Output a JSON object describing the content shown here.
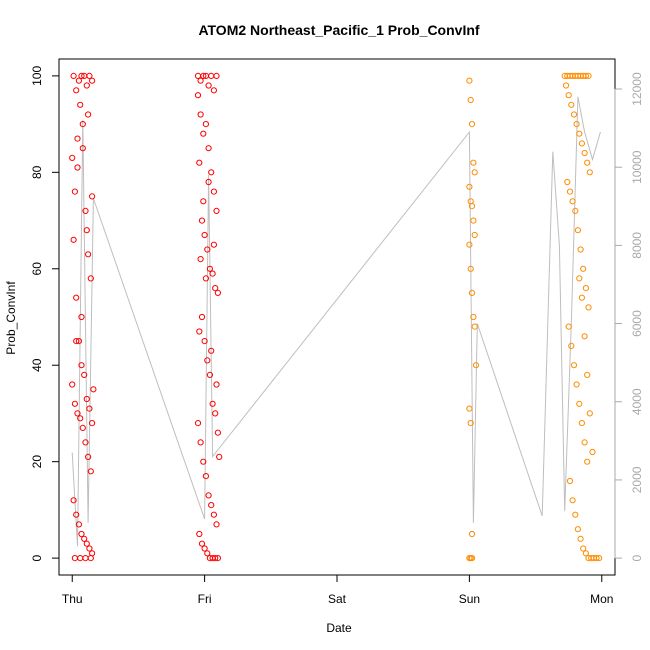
{
  "chart_data": {
    "type": "scatter",
    "title": "ATOM2 Northeast_Pacific_1 Prob_ConvInf",
    "xlabel": "Date",
    "ylabel": "Prob_ConvInf",
    "x_ticks": [
      "Thu",
      "Fri",
      "Sat",
      "Sun",
      "Mon"
    ],
    "x_range_days": [
      -0.1,
      4.1
    ],
    "ylim": [
      -3.5,
      103.5
    ],
    "y_ticks": [
      0,
      20,
      40,
      60,
      80,
      100
    ],
    "y2lim": [
      -432,
      12768
    ],
    "y2_ticks": [
      0,
      2000,
      4000,
      6000,
      8000,
      10000,
      12000
    ],
    "colors": {
      "series_a": "#ff0000",
      "series_b": "#ff8c00",
      "line": "#bebebe",
      "right_axis": "#a9a9a9"
    },
    "grey_line": {
      "x": [
        0.0,
        0.04,
        0.08,
        0.12,
        0.16,
        1.0,
        1.03,
        1.06,
        3.0,
        3.03,
        3.06,
        3.55,
        3.63,
        3.68,
        3.72,
        3.77,
        3.82,
        3.87,
        3.93,
        3.99
      ],
      "y": [
        2700,
        300,
        11200,
        900,
        9200,
        1000,
        9800,
        2600,
        10900,
        900,
        6000,
        1080,
        10400,
        8000,
        1200,
        6000,
        11800,
        10900,
        10200,
        10900
      ]
    },
    "series": [
      {
        "name": "red",
        "color": "#ff0000",
        "points": [
          [
            0.01,
            100
          ],
          [
            0.03,
            97
          ],
          [
            0.05,
            99
          ],
          [
            0.07,
            100
          ],
          [
            0.09,
            100
          ],
          [
            0.11,
            98
          ],
          [
            0.13,
            100
          ],
          [
            0.15,
            99
          ],
          [
            0.0,
            83
          ],
          [
            0.02,
            76
          ],
          [
            0.04,
            87
          ],
          [
            0.06,
            94
          ],
          [
            0.08,
            85
          ],
          [
            0.1,
            72
          ],
          [
            0.12,
            63
          ],
          [
            0.14,
            58
          ],
          [
            0.01,
            66
          ],
          [
            0.03,
            54
          ],
          [
            0.05,
            45
          ],
          [
            0.07,
            40
          ],
          [
            0.09,
            38
          ],
          [
            0.11,
            33
          ],
          [
            0.13,
            31
          ],
          [
            0.15,
            28
          ],
          [
            0.0,
            36
          ],
          [
            0.02,
            32
          ],
          [
            0.04,
            30
          ],
          [
            0.06,
            29
          ],
          [
            0.08,
            27
          ],
          [
            0.1,
            24
          ],
          [
            0.12,
            21
          ],
          [
            0.14,
            18
          ],
          [
            0.01,
            12
          ],
          [
            0.03,
            9
          ],
          [
            0.05,
            7
          ],
          [
            0.07,
            5
          ],
          [
            0.09,
            4
          ],
          [
            0.11,
            3
          ],
          [
            0.13,
            2
          ],
          [
            0.15,
            1
          ],
          [
            0.02,
            0
          ],
          [
            0.06,
            0
          ],
          [
            0.1,
            0
          ],
          [
            0.14,
            0
          ],
          [
            0.03,
            45
          ],
          [
            0.07,
            50
          ],
          [
            0.11,
            68
          ],
          [
            0.15,
            75
          ],
          [
            0.04,
            81
          ],
          [
            0.08,
            90
          ],
          [
            0.12,
            92
          ],
          [
            0.16,
            35
          ],
          [
            0.95,
            100
          ],
          [
            0.97,
            99
          ],
          [
            0.99,
            100
          ],
          [
            1.01,
            100
          ],
          [
            1.03,
            98
          ],
          [
            1.05,
            100
          ],
          [
            1.07,
            97
          ],
          [
            1.09,
            100
          ],
          [
            0.95,
            96
          ],
          [
            0.97,
            92
          ],
          [
            0.99,
            88
          ],
          [
            1.01,
            90
          ],
          [
            1.03,
            85
          ],
          [
            1.05,
            80
          ],
          [
            1.07,
            76
          ],
          [
            1.09,
            72
          ],
          [
            0.96,
            82
          ],
          [
            0.98,
            70
          ],
          [
            1.0,
            67
          ],
          [
            1.02,
            64
          ],
          [
            1.04,
            60
          ],
          [
            1.06,
            59
          ],
          [
            1.08,
            56
          ],
          [
            1.1,
            55
          ],
          [
            0.96,
            47
          ],
          [
            0.98,
            50
          ],
          [
            1.0,
            45
          ],
          [
            1.02,
            41
          ],
          [
            1.04,
            38
          ],
          [
            1.06,
            32
          ],
          [
            1.08,
            30
          ],
          [
            1.1,
            26
          ],
          [
            0.95,
            28
          ],
          [
            0.97,
            24
          ],
          [
            0.99,
            20
          ],
          [
            1.01,
            17
          ],
          [
            1.03,
            13
          ],
          [
            1.05,
            11
          ],
          [
            1.07,
            9
          ],
          [
            1.09,
            7
          ],
          [
            0.96,
            5
          ],
          [
            0.98,
            3
          ],
          [
            1.0,
            2
          ],
          [
            1.02,
            1
          ],
          [
            1.04,
            0
          ],
          [
            1.06,
            0
          ],
          [
            1.08,
            0
          ],
          [
            1.1,
            0
          ],
          [
            0.97,
            62
          ],
          [
            1.01,
            58
          ],
          [
            1.05,
            43
          ],
          [
            1.09,
            36
          ],
          [
            0.99,
            74
          ],
          [
            1.03,
            78
          ],
          [
            1.07,
            65
          ],
          [
            1.11,
            21
          ]
        ]
      },
      {
        "name": "orange",
        "color": "#ff8c00",
        "points": [
          [
            3.0,
            99
          ],
          [
            3.01,
            95
          ],
          [
            3.02,
            90
          ],
          [
            3.03,
            82
          ],
          [
            3.04,
            80
          ],
          [
            3.0,
            77
          ],
          [
            3.01,
            74
          ],
          [
            3.02,
            73
          ],
          [
            3.03,
            70
          ],
          [
            3.04,
            67
          ],
          [
            3.0,
            65
          ],
          [
            3.01,
            60
          ],
          [
            3.02,
            55
          ],
          [
            3.03,
            50
          ],
          [
            3.04,
            48
          ],
          [
            3.05,
            40
          ],
          [
            3.0,
            31
          ],
          [
            3.01,
            28
          ],
          [
            3.02,
            5
          ],
          [
            3.0,
            0
          ],
          [
            3.01,
            0
          ],
          [
            3.02,
            0
          ],
          [
            3.72,
            100
          ],
          [
            3.74,
            100
          ],
          [
            3.76,
            100
          ],
          [
            3.78,
            100
          ],
          [
            3.8,
            100
          ],
          [
            3.82,
            100
          ],
          [
            3.84,
            100
          ],
          [
            3.86,
            100
          ],
          [
            3.88,
            100
          ],
          [
            3.9,
            100
          ],
          [
            3.73,
            98
          ],
          [
            3.75,
            96
          ],
          [
            3.77,
            94
          ],
          [
            3.79,
            92
          ],
          [
            3.81,
            90
          ],
          [
            3.83,
            88
          ],
          [
            3.85,
            86
          ],
          [
            3.87,
            84
          ],
          [
            3.89,
            82
          ],
          [
            3.91,
            80
          ],
          [
            3.74,
            78
          ],
          [
            3.76,
            76
          ],
          [
            3.78,
            74
          ],
          [
            3.8,
            72
          ],
          [
            3.82,
            68
          ],
          [
            3.84,
            64
          ],
          [
            3.86,
            60
          ],
          [
            3.88,
            56
          ],
          [
            3.9,
            52
          ],
          [
            3.75,
            48
          ],
          [
            3.77,
            44
          ],
          [
            3.79,
            40
          ],
          [
            3.81,
            36
          ],
          [
            3.83,
            32
          ],
          [
            3.85,
            28
          ],
          [
            3.87,
            24
          ],
          [
            3.89,
            20
          ],
          [
            3.76,
            16
          ],
          [
            3.78,
            12
          ],
          [
            3.8,
            9
          ],
          [
            3.82,
            6
          ],
          [
            3.84,
            4
          ],
          [
            3.86,
            2
          ],
          [
            3.88,
            1
          ],
          [
            3.9,
            0
          ],
          [
            3.92,
            0
          ],
          [
            3.94,
            0
          ],
          [
            3.96,
            0
          ],
          [
            3.98,
            0
          ],
          [
            3.83,
            58
          ],
          [
            3.85,
            54
          ],
          [
            3.87,
            46
          ],
          [
            3.89,
            38
          ],
          [
            3.91,
            30
          ],
          [
            3.93,
            22
          ]
        ]
      }
    ]
  }
}
